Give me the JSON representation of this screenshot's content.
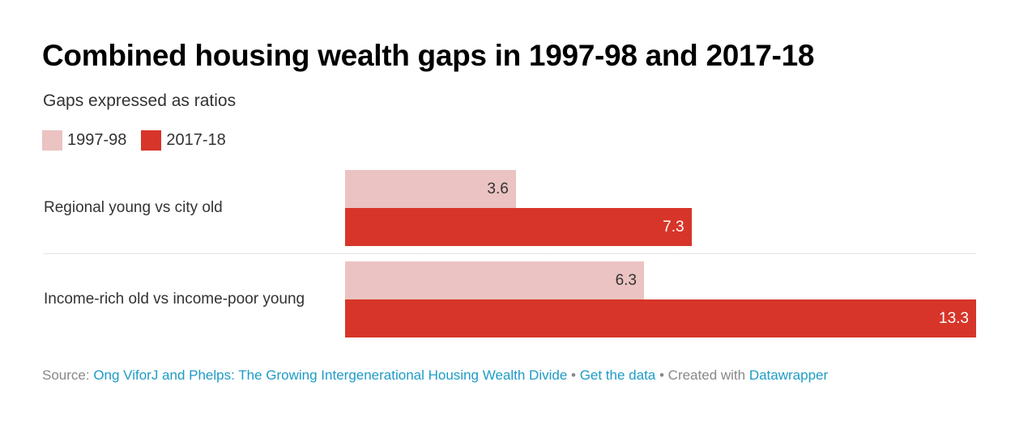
{
  "chart_data": {
    "type": "bar",
    "orientation": "horizontal",
    "title": "Combined housing wealth gaps in 1997-98 and 2017-18",
    "subtitle": "Gaps expressed as ratios",
    "categories": [
      "Regional young vs city old",
      "Income-rich old vs income-poor young"
    ],
    "series": [
      {
        "name": "1997-98",
        "values": [
          3.6,
          6.3
        ],
        "color": "#ebc3c2"
      },
      {
        "name": "2017-18",
        "values": [
          7.3,
          13.3
        ],
        "color": "#d73529"
      }
    ],
    "xlim": [
      0,
      13.3
    ],
    "legend": "top-left",
    "grid": false
  },
  "footer": {
    "source_label": "Source:",
    "source_link": "Ong ViforJ and Phelps: The Growing Intergenerational Housing Wealth Divide",
    "sep1": " • ",
    "get_data": "Get the data",
    "sep2": " • Created with ",
    "datawrapper": "Datawrapper"
  }
}
